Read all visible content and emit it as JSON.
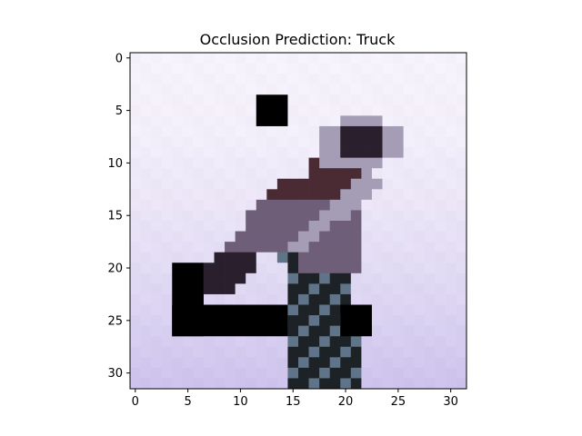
{
  "chart_data": {
    "type": "heatmap",
    "title": "Occlusion Prediction: Truck",
    "xlabel": "",
    "ylabel": "",
    "xlim": [
      -0.5,
      31.5
    ],
    "ylim": [
      31.5,
      -0.5
    ],
    "x_ticks": [
      0,
      5,
      10,
      15,
      20,
      25,
      30
    ],
    "y_ticks": [
      0,
      5,
      10,
      15,
      20,
      25,
      30
    ],
    "grid": false,
    "image_size": [
      32,
      32
    ],
    "background_gradient": {
      "top_color": "#f6f2fb",
      "bottom_color": "#cdc3ec"
    },
    "subject_colors": {
      "dark": "#2a1f2c",
      "maroon": "#4a2b33",
      "mid": "#6e5e78",
      "light": "#a59cb5",
      "legs": "#1c2226",
      "blueish": "#5f7488"
    },
    "occlusion_color": "#000000",
    "occlusion_patches": [
      {
        "row_start": 4,
        "row_end": 7,
        "col_start": 12,
        "col_end": 15
      },
      {
        "row_start": 20,
        "row_end": 27,
        "col_start": 4,
        "col_end": 7
      },
      {
        "row_start": 24,
        "row_end": 27,
        "col_start": 4,
        "col_end": 15
      },
      {
        "row_start": 24,
        "row_end": 27,
        "col_start": 20,
        "col_end": 23
      }
    ]
  }
}
